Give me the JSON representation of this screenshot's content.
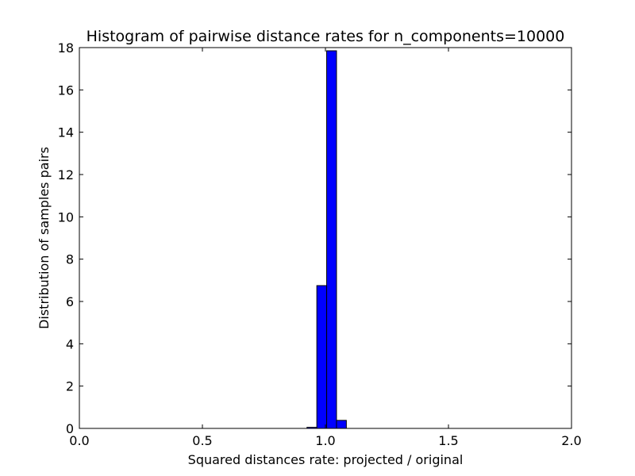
{
  "chart_data": {
    "type": "bar",
    "title": "Histogram of pairwise distance rates for n_components=10000",
    "xlabel": "Squared distances rate: projected / original",
    "ylabel": "Distribution of samples pairs",
    "xlim": [
      0.0,
      2.0
    ],
    "ylim": [
      0,
      18
    ],
    "xticks": [
      0.0,
      0.5,
      1.0,
      1.5,
      2.0
    ],
    "xtick_labels": [
      "0.0",
      "0.5",
      "1.0",
      "1.5",
      "2.0"
    ],
    "yticks": [
      0,
      2,
      4,
      6,
      8,
      10,
      12,
      14,
      16,
      18
    ],
    "ytick_labels": [
      "0",
      "2",
      "4",
      "6",
      "8",
      "10",
      "12",
      "14",
      "16",
      "18"
    ],
    "grid": false,
    "bar_color": "#0000ff",
    "bins": [
      {
        "x0": 0.925,
        "x1": 0.965,
        "value": 0.05
      },
      {
        "x0": 0.965,
        "x1": 1.005,
        "value": 6.75
      },
      {
        "x0": 1.005,
        "x1": 1.045,
        "value": 17.85
      },
      {
        "x0": 1.045,
        "x1": 1.085,
        "value": 0.38
      }
    ]
  }
}
